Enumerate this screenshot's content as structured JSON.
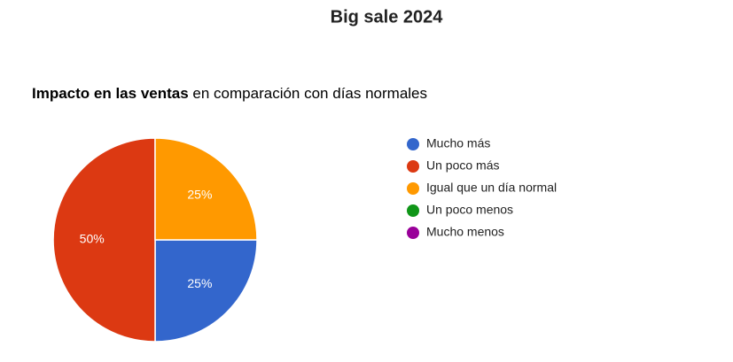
{
  "chart_data": {
    "type": "pie",
    "title": "Big sale 2024",
    "subtitle": [
      "Impacto en las ventas",
      "en comparación con días normales"
    ],
    "categories": [
      "Mucho más",
      "Un poco más",
      "Igual que un día normal",
      "Un poco menos",
      "Mucho menos"
    ],
    "values": [
      25,
      50,
      25,
      0,
      0
    ],
    "value_labels": [
      "25%",
      "50%",
      "25%",
      null,
      null
    ],
    "colors": [
      "#3366cc",
      "#dc3912",
      "#ff9900",
      "#109618",
      "#990099"
    ],
    "legend": "right"
  }
}
